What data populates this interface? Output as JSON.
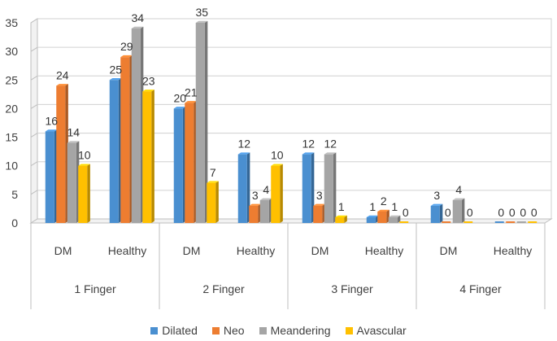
{
  "chart_data": {
    "type": "bar",
    "style": "3d-clustered-column",
    "title": "",
    "xlabel": "",
    "ylabel": "",
    "ylim": [
      0,
      35
    ],
    "yticks": [
      0,
      5,
      10,
      15,
      20,
      25,
      30,
      35
    ],
    "grid": true,
    "legend_position": "bottom",
    "groups": [
      {
        "label": "1 Finger",
        "categories": [
          "DM",
          "Healthy"
        ]
      },
      {
        "label": "2 Finger",
        "categories": [
          "DM",
          "Healthy"
        ]
      },
      {
        "label": "3 Finger",
        "categories": [
          "DM",
          "Healthy"
        ]
      },
      {
        "label": "4 Finger",
        "categories": [
          "DM",
          "Healthy"
        ]
      }
    ],
    "series": [
      {
        "name": "Dilated",
        "color": "#4a8fd0",
        "values": [
          16,
          25,
          20,
          12,
          12,
          1,
          3,
          0
        ]
      },
      {
        "name": "Neo",
        "color": "#ed7d31",
        "values": [
          24,
          29,
          21,
          3,
          3,
          2,
          0,
          0
        ]
      },
      {
        "name": "Meandering",
        "color": "#a5a5a5",
        "values": [
          14,
          34,
          35,
          4,
          12,
          1,
          4,
          0
        ]
      },
      {
        "name": "Avascular",
        "color": "#ffc000",
        "values": [
          10,
          23,
          7,
          10,
          1,
          0,
          0,
          0
        ]
      }
    ]
  }
}
